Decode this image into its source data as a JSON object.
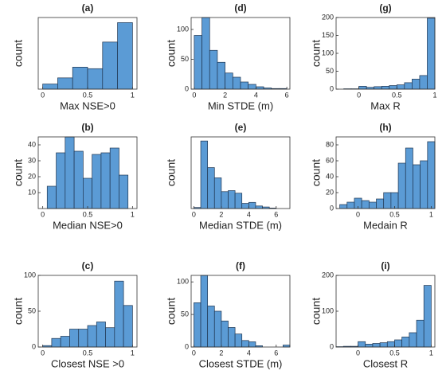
{
  "chart_data": [
    {
      "type": "histogram",
      "title": "(a)",
      "xlabel": "Max NSE>0",
      "ylabel": "count",
      "color": "#5b9bd5",
      "bins": [
        0,
        0.1667,
        0.3333,
        0.5,
        0.6667,
        0.8333,
        1
      ],
      "counts": [
        10,
        22,
        43,
        40,
        92,
        130
      ],
      "xlim": [
        -0.05,
        1.05
      ],
      "xticks": [
        0,
        0.5,
        1
      ],
      "ylim": [
        0,
        140
      ],
      "yticks": []
    },
    {
      "type": "histogram",
      "title": "(b)",
      "xlabel": "Median NSE>0",
      "ylabel": "count",
      "color": "#5b9bd5",
      "bins": [
        0.05,
        0.15,
        0.25,
        0.35,
        0.45,
        0.55,
        0.65,
        0.75,
        0.85,
        0.95
      ],
      "counts": [
        14,
        35,
        46,
        36,
        19,
        34,
        35,
        38,
        21
      ],
      "xlim": [
        -0.05,
        1.05
      ],
      "xticks": [
        0,
        0.5,
        1
      ],
      "ylim": [
        0,
        45
      ],
      "yticks": [
        10,
        20,
        30,
        40
      ]
    },
    {
      "type": "histogram",
      "title": "(c)",
      "xlabel": "Closest NSE >0",
      "ylabel": "count",
      "color": "#5b9bd5",
      "bins": [
        0,
        0.1,
        0.2,
        0.3,
        0.4,
        0.5,
        0.6,
        0.7,
        0.8,
        0.9,
        1
      ],
      "counts": [
        2,
        12,
        15,
        25,
        25,
        30,
        35,
        27,
        92,
        58
      ],
      "xlim": [
        -0.05,
        1.05
      ],
      "xticks": [
        0,
        0.5,
        1
      ],
      "ylim": [
        0,
        100
      ],
      "yticks": [
        0,
        50,
        100
      ]
    },
    {
      "type": "histogram",
      "title": "(d)",
      "xlabel": "Min STDE (m)",
      "ylabel": "count",
      "color": "#5b9bd5",
      "bins": [
        0,
        0.5,
        1,
        1.5,
        2,
        2.5,
        3,
        3.5,
        4,
        4.5,
        5,
        5.5,
        6
      ],
      "counts": [
        90,
        120,
        65,
        45,
        27,
        20,
        12,
        8,
        4,
        2,
        1,
        1
      ],
      "xlim": [
        -0.2,
        6.2
      ],
      "xticks": [
        0,
        2,
        4,
        6
      ],
      "ylim": [
        0,
        120
      ],
      "yticks": [
        0,
        50,
        100
      ]
    },
    {
      "type": "histogram",
      "title": "(e)",
      "xlabel": "Median STDE (m)",
      "ylabel": "count",
      "color": "#5b9bd5",
      "bins": [
        0,
        0.5,
        1,
        1.5,
        2,
        2.5,
        3,
        3.5,
        4,
        4.5,
        5,
        5.5,
        6
      ],
      "counts": [
        2,
        132,
        80,
        60,
        33,
        35,
        30,
        10,
        12,
        5,
        3,
        1
      ],
      "xlim": [
        -0.2,
        7
      ],
      "xticks": [
        0,
        2,
        4,
        6
      ],
      "ylim": [
        0,
        140
      ],
      "yticks": []
    },
    {
      "type": "histogram",
      "title": "(f)",
      "xlabel": "Closest STDE (m)",
      "ylabel": "count",
      "color": "#5b9bd5",
      "bins": [
        0,
        0.5,
        1,
        1.5,
        2,
        2.5,
        3,
        3.5,
        4,
        4.5,
        5,
        5.5,
        6,
        6.5,
        7
      ],
      "counts": [
        68,
        112,
        63,
        55,
        40,
        30,
        20,
        10,
        8,
        2,
        0,
        0,
        0,
        3
      ],
      "xlim": [
        -0.2,
        7
      ],
      "xticks": [
        0,
        2,
        4,
        6
      ],
      "ylim": [
        0,
        110
      ],
      "yticks": [
        0,
        50,
        100
      ]
    },
    {
      "type": "histogram",
      "title": "(g)",
      "xlabel": "Max R",
      "ylabel": "count",
      "color": "#5b9bd5",
      "bins": [
        -0.2,
        -0.1,
        0,
        0.1,
        0.2,
        0.3,
        0.4,
        0.5,
        0.6,
        0.7,
        0.8,
        0.9,
        1
      ],
      "counts": [
        1,
        1,
        8,
        5,
        7,
        8,
        10,
        12,
        18,
        28,
        38,
        198
      ],
      "xlim": [
        -0.3,
        1
      ],
      "xticks": [
        0,
        0.5,
        1
      ],
      "ylim": [
        0,
        200
      ],
      "yticks": [
        0,
        50,
        100,
        150,
        200
      ]
    },
    {
      "type": "histogram",
      "title": "(h)",
      "xlabel": "Medain R",
      "ylabel": "count",
      "color": "#5b9bd5",
      "bins": [
        -0.25,
        -0.15,
        -0.05,
        0.05,
        0.15,
        0.25,
        0.35,
        0.45,
        0.55,
        0.65,
        0.75,
        0.85,
        0.95,
        1.05
      ],
      "counts": [
        5,
        8,
        13,
        10,
        8,
        12,
        20,
        20,
        57,
        76,
        55,
        60,
        84
      ],
      "xlim": [
        -0.3,
        1.05
      ],
      "xticks": [
        0,
        0.5,
        1
      ],
      "ylim": [
        0,
        90
      ],
      "yticks": [
        0,
        20,
        40,
        60,
        80
      ]
    },
    {
      "type": "histogram",
      "title": "(i)",
      "xlabel": "Closest R",
      "ylabel": "count",
      "color": "#5b9bd5",
      "bins": [
        -0.3,
        -0.2,
        -0.1,
        0,
        0.1,
        0.2,
        0.3,
        0.4,
        0.5,
        0.6,
        0.7,
        0.8,
        0.9,
        1
      ],
      "counts": [
        1,
        2,
        2,
        15,
        8,
        10,
        12,
        15,
        20,
        28,
        40,
        75,
        172
      ],
      "xlim": [
        -0.3,
        1.05
      ],
      "xticks": [
        0,
        0.5,
        1
      ],
      "ylim": [
        0,
        200
      ],
      "yticks": [
        0,
        100,
        200
      ]
    }
  ]
}
